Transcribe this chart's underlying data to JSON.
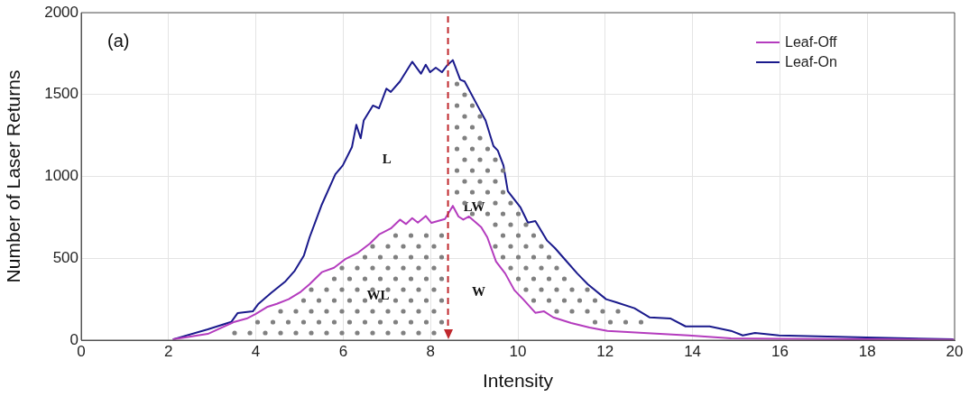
{
  "chart_data": {
    "type": "line",
    "xlabel": "Intensity",
    "ylabel": "Number of Laser Returns",
    "xlim": [
      0,
      20
    ],
    "xticks": [
      0,
      2,
      4,
      6,
      8,
      10,
      12,
      14,
      16,
      18,
      20
    ],
    "ylim": [
      0,
      2000
    ],
    "yticks": [
      0,
      500,
      1000,
      1500,
      2000
    ],
    "grid": true,
    "legend": "top right",
    "marker": "none",
    "line_style": "solid",
    "series": [
      {
        "name": "Leaf-Off",
        "color": "#b43cbe",
        "x": [
          2.1,
          2.9,
          3.51,
          3.79,
          4.0,
          4.27,
          4.48,
          4.75,
          5.03,
          5.23,
          5.51,
          5.79,
          6.06,
          6.34,
          6.61,
          6.82,
          7.09,
          7.3,
          7.44,
          7.58,
          7.71,
          7.89,
          8.02,
          8.33,
          8.51,
          8.64,
          8.75,
          8.88,
          9.16,
          9.3,
          9.5,
          9.71,
          9.92,
          10.12,
          10.4,
          10.6,
          10.81,
          11.22,
          11.64,
          12.05,
          12.88,
          13.91,
          14.88,
          16,
          18,
          20
        ],
        "values": [
          5,
          38,
          112,
          132,
          160,
          204,
          222,
          250,
          296,
          342,
          415,
          442,
          497,
          534,
          590,
          645,
          682,
          736,
          709,
          745,
          718,
          758,
          716,
          740,
          820,
          755,
          736,
          755,
          690,
          628,
          480,
          407,
          305,
          250,
          167,
          176,
          139,
          105,
          77,
          57,
          44,
          29,
          11,
          8,
          5,
          3
        ]
      },
      {
        "name": "Leaf-On",
        "color": "#1a1a8c",
        "x": [
          2.1,
          2.9,
          3.44,
          3.58,
          3.93,
          4.06,
          4.34,
          4.68,
          4.89,
          5.1,
          5.23,
          5.51,
          5.82,
          5.99,
          6.2,
          6.3,
          6.4,
          6.47,
          6.68,
          6.82,
          6.99,
          7.09,
          7.3,
          7.58,
          7.78,
          7.89,
          7.99,
          8.12,
          8.26,
          8.37,
          8.51,
          8.68,
          8.78,
          9.09,
          9.26,
          9.44,
          9.54,
          9.67,
          9.77,
          10.06,
          10.23,
          10.4,
          10.67,
          10.85,
          11.09,
          11.36,
          11.6,
          12.02,
          12.25,
          12.67,
          13.02,
          13.5,
          13.84,
          14.39,
          14.88,
          15.15,
          15.43,
          15.98,
          16.87,
          17.98,
          19.97
        ],
        "values": [
          5,
          66,
          112,
          165,
          176,
          222,
          286,
          360,
          424,
          517,
          628,
          828,
          1013,
          1067,
          1179,
          1315,
          1233,
          1342,
          1433,
          1416,
          1536,
          1516,
          1580,
          1700,
          1627,
          1682,
          1636,
          1664,
          1636,
          1675,
          1710,
          1590,
          1580,
          1425,
          1342,
          1186,
          1158,
          1067,
          910,
          810,
          718,
          727,
          608,
          562,
          489,
          407,
          342,
          250,
          231,
          195,
          139,
          132,
          84,
          84,
          57,
          29,
          44,
          29,
          24,
          17,
          5
        ]
      }
    ],
    "ref_lines": [
      {
        "axis": "x",
        "value": 8.4,
        "color": "#c0282d",
        "line_style": "dashed"
      }
    ],
    "annotations": [
      "(a)",
      "L",
      "LW",
      "WL",
      "W"
    ]
  }
}
